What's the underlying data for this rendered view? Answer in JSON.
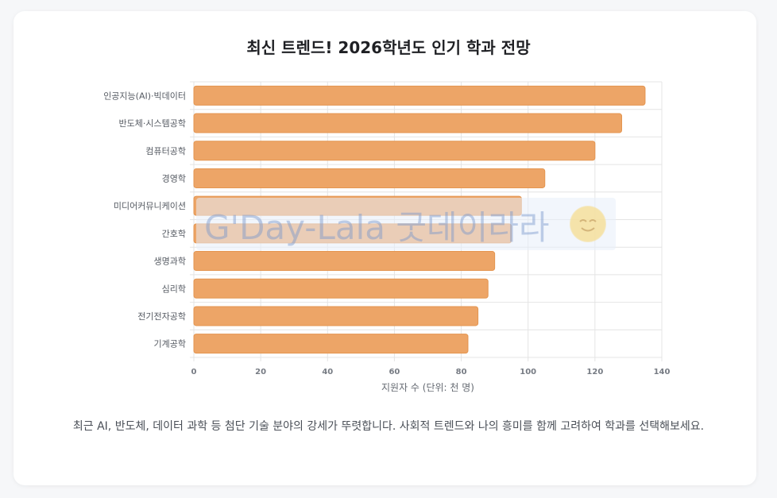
{
  "title": "최신 트렌드! 2026학년도 인기 학과 전망",
  "description": "최근 AI, 반도체, 데이터 과학 등 첨단 기술 분야의 강세가 뚜렷합니다. 사회적 트렌드와 나의 흥미를 함께 고려하여 학과를 선택해보세요.",
  "watermark": {
    "text": "G'Day-Lala 굿데이라라",
    "icon": "smiley-face-icon"
  },
  "colors": {
    "bar": "#eda567",
    "bar_border": "#e49550",
    "grid": "#e4e4e4"
  },
  "chart_data": {
    "type": "bar",
    "orientation": "horizontal",
    "categories": [
      "인공지능(AI)·빅데이터",
      "반도체·시스템공학",
      "컴퓨터공학",
      "경영학",
      "미디어커뮤니케이션",
      "간호학",
      "생명과학",
      "심리학",
      "전기전자공학",
      "기계공학"
    ],
    "values": [
      135,
      128,
      120,
      105,
      98,
      95,
      90,
      88,
      85,
      82
    ],
    "xlabel": "지원자 수 (단위: 천 명)",
    "ylabel": "",
    "xlim": [
      0,
      140
    ],
    "xticks": [
      "0",
      "20",
      "40",
      "60",
      "80",
      "100",
      "120",
      "140"
    ],
    "grid": true,
    "legend": "none"
  }
}
